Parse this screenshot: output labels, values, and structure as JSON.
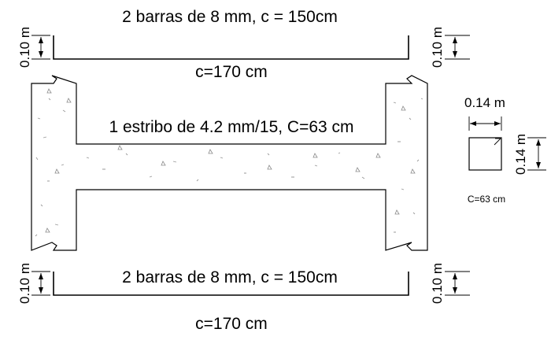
{
  "top_bar": {
    "label": "2 barras de 8 mm, c = 150cm",
    "length_label": "c=170 cm",
    "left_hook": "0.10 m",
    "right_hook": "0.10 m"
  },
  "stirrup": {
    "label": "1 estribo de 4.2 mm/15, C=63 cm"
  },
  "section_detail": {
    "width_label": "0.14 m",
    "height_label": "0.14 m",
    "perimeter_label": "C=63 cm"
  },
  "bottom_bar": {
    "label": "2 barras de 8 mm, c = 150cm",
    "length_label": "c=170 cm",
    "left_hook": "0.10 m",
    "right_hook": "0.10 m"
  }
}
